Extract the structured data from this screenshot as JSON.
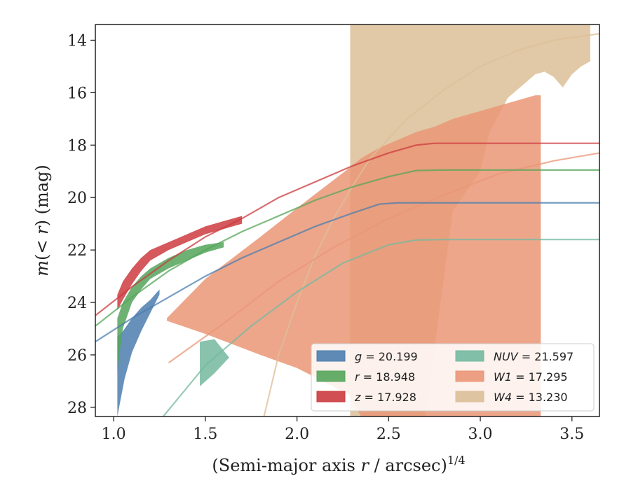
{
  "chart_data": {
    "type": "area",
    "title": "",
    "xlabel_html": "(Semi-major axis <tspan font-style='italic'>r</tspan> / arcsec)<tspan dy='-10' font-size='16'>1/4</tspan><tspan dy='10'></tspan>",
    "ylabel_html": "<tspan font-style='italic'>m</tspan>(&lt; <tspan font-style='italic'>r</tspan>) (mag)",
    "xlim": [
      0.9,
      3.65
    ],
    "ylim": [
      28.35,
      13.4
    ],
    "y_inverted": true,
    "xticks": [
      1.0,
      1.5,
      2.0,
      2.5,
      3.0,
      3.5
    ],
    "xtick_labels": [
      "1.0",
      "1.5",
      "2.0",
      "2.5",
      "3.0",
      "3.5"
    ],
    "yticks": [
      14,
      16,
      18,
      20,
      22,
      24,
      26,
      28
    ],
    "ytick_labels": [
      "14",
      "16",
      "18",
      "20",
      "22",
      "24",
      "26",
      "28"
    ],
    "grid": false,
    "legend_position": "lower-right",
    "legend": [
      {
        "band": "g",
        "value": "20.199",
        "color": "#4c7eae"
      },
      {
        "band": "r",
        "value": "18.948",
        "color": "#55a55a"
      },
      {
        "band": "z",
        "value": "17.928",
        "color": "#cc3b3f"
      },
      {
        "band": "NUV",
        "value": "21.597",
        "color": "#74b9a0"
      },
      {
        "band": "W1",
        "value": "17.295",
        "color": "#ea9675"
      },
      {
        "band": "W4",
        "value": "13.230",
        "color": "#dcbf98"
      }
    ],
    "series": [
      {
        "name": "W4",
        "color": "#dcbf98",
        "band_x": [
          2.29,
          2.29,
          2.45,
          2.55,
          2.7,
          2.85,
          3.0,
          3.05,
          3.15,
          3.25,
          3.3,
          3.35,
          3.4,
          3.45,
          3.5,
          3.55,
          3.6
        ],
        "band_upper": [
          28.35,
          13.4,
          13.4,
          13.4,
          13.4,
          13.4,
          13.4,
          13.4,
          13.4,
          13.4,
          13.4,
          13.4,
          13.4,
          13.4,
          13.4,
          13.4,
          13.4
        ],
        "band_lower": [
          28.35,
          28.35,
          28.35,
          28.35,
          28.35,
          20.5,
          19.0,
          17.5,
          16.2,
          15.6,
          15.3,
          15.2,
          15.4,
          15.8,
          15.3,
          15.0,
          14.8
        ],
        "fit_x": [
          1.82,
          1.9,
          2.0,
          2.1,
          2.2,
          2.3,
          2.4,
          2.6,
          2.8,
          3.0,
          3.2,
          3.4,
          3.65
        ],
        "fit_y": [
          28.35,
          26.0,
          24.0,
          22.2,
          20.8,
          19.6,
          18.5,
          17.0,
          15.9,
          15.0,
          14.4,
          14.0,
          13.75
        ]
      },
      {
        "name": "W1",
        "color": "#ea9675",
        "band_x": [
          1.29,
          1.5,
          1.8,
          2.0,
          2.28,
          2.35,
          2.45,
          2.55,
          2.65,
          2.7,
          2.75,
          2.85,
          2.95,
          3.0,
          3.1,
          3.2,
          3.3,
          3.33
        ],
        "band_upper": [
          24.6,
          23.1,
          21.5,
          20.4,
          18.9,
          18.5,
          18.1,
          17.8,
          17.5,
          17.4,
          17.3,
          17.0,
          16.8,
          16.7,
          16.5,
          16.3,
          16.1,
          16.1
        ],
        "band_lower": [
          24.7,
          25.2,
          26.0,
          26.5,
          27.5,
          28.35,
          28.35,
          28.35,
          28.35,
          28.35,
          28.35,
          28.35,
          28.35,
          28.35,
          28.35,
          28.35,
          28.35,
          28.35
        ],
        "fit_x": [
          1.3,
          1.6,
          1.9,
          2.2,
          2.5,
          2.8,
          3.1,
          3.4,
          3.65
        ],
        "fit_y": [
          26.3,
          24.8,
          23.2,
          21.9,
          20.8,
          19.9,
          19.1,
          18.6,
          18.3
        ]
      },
      {
        "name": "NUV",
        "color": "#74b9a0",
        "band_x": [
          1.47,
          1.55,
          1.63,
          1.63,
          1.55,
          1.47
        ],
        "band_upper": [
          25.5,
          25.4,
          26.1,
          26.1,
          26.7,
          27.2
        ],
        "band_lower": [
          27.2,
          26.7,
          26.1,
          26.1,
          25.4,
          25.5
        ],
        "fit_x": [
          1.27,
          1.5,
          1.75,
          2.0,
          2.25,
          2.5,
          2.65,
          2.8,
          3.0,
          3.65
        ],
        "fit_y": [
          28.35,
          26.4,
          24.9,
          23.6,
          22.5,
          21.8,
          21.62,
          21.6,
          21.6,
          21.6
        ]
      },
      {
        "name": "g",
        "color": "#4c7eae",
        "band_x": [
          1.02,
          1.05,
          1.1,
          1.15,
          1.2,
          1.25,
          1.25,
          1.2,
          1.15,
          1.1,
          1.06,
          1.02
        ],
        "band_upper": [
          25.3,
          25.1,
          24.6,
          24.2,
          23.9,
          23.5,
          23.7,
          24.4,
          25.1,
          25.9,
          26.9,
          28.35
        ],
        "band_lower": [
          28.35,
          26.9,
          25.9,
          25.1,
          24.4,
          23.7,
          23.5,
          23.9,
          24.2,
          24.6,
          25.1,
          25.3
        ],
        "fit_x": [
          0.9,
          1.1,
          1.3,
          1.5,
          1.7,
          1.9,
          2.1,
          2.3,
          2.45,
          2.55,
          2.7,
          3.0,
          3.65
        ],
        "fit_y": [
          25.5,
          24.6,
          23.8,
          23.0,
          22.3,
          21.7,
          21.1,
          20.6,
          20.25,
          20.2,
          20.2,
          20.2,
          20.2
        ]
      },
      {
        "name": "r",
        "color": "#55a55a",
        "band_x": [
          1.02,
          1.05,
          1.1,
          1.15,
          1.2,
          1.3,
          1.4,
          1.5,
          1.6,
          1.6,
          1.5,
          1.4,
          1.3,
          1.2,
          1.15,
          1.1,
          1.05,
          1.02
        ],
        "band_upper": [
          24.6,
          24.0,
          23.4,
          23.0,
          22.7,
          22.3,
          22.0,
          21.8,
          21.7,
          21.9,
          22.1,
          22.4,
          22.7,
          23.1,
          23.5,
          24.0,
          25.0,
          26.6
        ],
        "band_lower": [
          26.6,
          25.0,
          24.0,
          23.5,
          23.1,
          22.7,
          22.4,
          22.1,
          21.9,
          21.7,
          21.8,
          22.0,
          22.3,
          22.7,
          23.0,
          23.4,
          24.0,
          24.6
        ],
        "fit_x": [
          0.9,
          1.1,
          1.3,
          1.5,
          1.7,
          1.9,
          2.1,
          2.3,
          2.5,
          2.65,
          2.8,
          3.0,
          3.65
        ],
        "fit_y": [
          24.9,
          23.8,
          22.8,
          22.0,
          21.3,
          20.7,
          20.1,
          19.6,
          19.2,
          18.97,
          18.95,
          18.95,
          18.95
        ]
      },
      {
        "name": "z",
        "color": "#cc3b3f",
        "band_x": [
          1.02,
          1.05,
          1.1,
          1.15,
          1.2,
          1.3,
          1.4,
          1.5,
          1.6,
          1.7,
          1.7,
          1.6,
          1.5,
          1.4,
          1.3,
          1.2,
          1.15,
          1.1,
          1.05,
          1.02
        ],
        "band_upper": [
          23.7,
          23.2,
          22.7,
          22.3,
          22.0,
          21.7,
          21.4,
          21.1,
          20.9,
          20.7,
          21.0,
          21.2,
          21.4,
          21.7,
          22.0,
          22.4,
          22.8,
          23.3,
          23.9,
          24.3
        ],
        "band_lower": [
          24.3,
          23.9,
          23.3,
          22.8,
          22.4,
          22.0,
          21.7,
          21.4,
          21.2,
          21.0,
          20.7,
          20.9,
          21.1,
          21.4,
          21.7,
          22.0,
          22.3,
          22.7,
          23.2,
          23.7
        ],
        "fit_x": [
          0.9,
          1.1,
          1.3,
          1.5,
          1.7,
          1.9,
          2.1,
          2.3,
          2.5,
          2.65,
          2.75,
          3.0,
          3.65
        ],
        "fit_y": [
          24.5,
          23.4,
          22.4,
          21.5,
          20.8,
          20.0,
          19.4,
          18.8,
          18.3,
          18.0,
          17.93,
          17.93,
          17.93
        ]
      }
    ]
  }
}
